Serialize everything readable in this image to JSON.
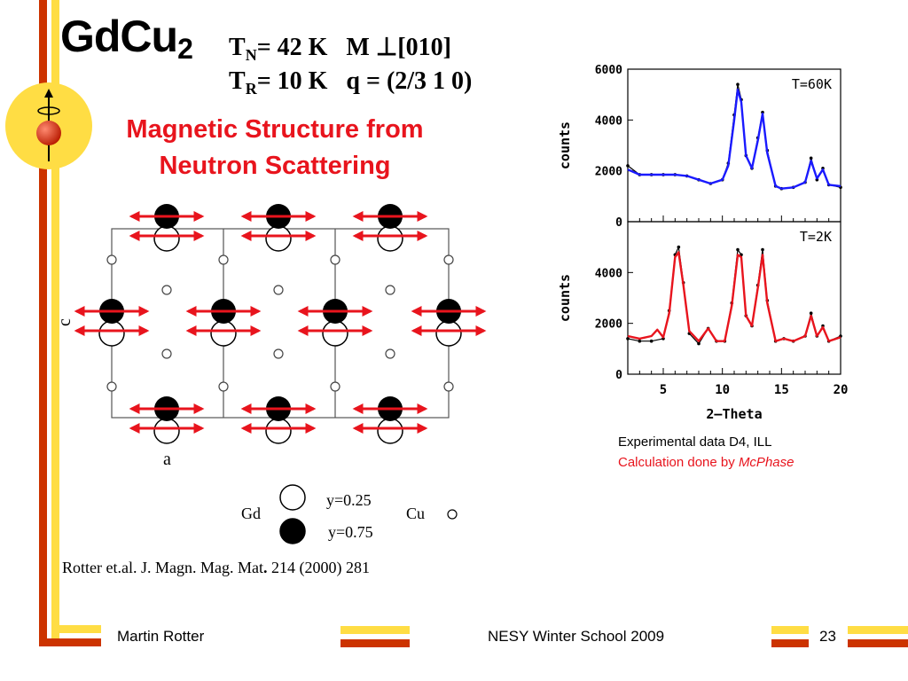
{
  "title": {
    "main": "GdCu",
    "subscript": "2"
  },
  "params": {
    "line1": {
      "t": "T",
      "sub": "N",
      "rest": "= 42 K   M ⊥[010]"
    },
    "line2": {
      "t": "T",
      "sub": "R",
      "rest": "= 10 K   q = (2/3 1 0)"
    }
  },
  "subtitle": {
    "line1": "Magnetic Structure from",
    "line2": "Neutron Scattering"
  },
  "structure": {
    "axis_c": "c",
    "axis_a": "a",
    "legend": {
      "gd": "Gd",
      "y025": "y=0.25",
      "y075": "y=0.75",
      "cu": "Cu"
    }
  },
  "chart_data": [
    {
      "type": "line",
      "annotation": "T=60K",
      "xlabel": "",
      "ylabel": "counts",
      "xlim": [
        2,
        20
      ],
      "ylim": [
        0,
        6000
      ],
      "yticks": [
        0,
        2000,
        4000,
        6000
      ],
      "series": [
        {
          "role": "experimental",
          "color": "#000000",
          "x": [
            2,
            3,
            4,
            5,
            6,
            7,
            8,
            9,
            10,
            10.5,
            11,
            11.3,
            11.6,
            12,
            12.5,
            13,
            13.4,
            13.8,
            14.5,
            15,
            16,
            17,
            17.5,
            18,
            18.5,
            19,
            20
          ],
          "y": [
            2200,
            1850,
            1850,
            1850,
            1850,
            1800,
            1650,
            1500,
            1650,
            2300,
            4200,
            5400,
            4800,
            2600,
            2100,
            3300,
            4300,
            2800,
            1400,
            1300,
            1350,
            1550,
            2500,
            1650,
            2100,
            1450,
            1350
          ]
        },
        {
          "role": "calculated",
          "color": "#1a1aff",
          "x": [
            2,
            3,
            4,
            5,
            6,
            7,
            8,
            9,
            10,
            10.5,
            11,
            11.3,
            11.6,
            12,
            12.5,
            13,
            13.4,
            13.8,
            14.5,
            15,
            16,
            17,
            17.5,
            18,
            18.5,
            19,
            20
          ],
          "y": [
            2050,
            1850,
            1850,
            1850,
            1850,
            1800,
            1650,
            1500,
            1650,
            2200,
            4000,
            5200,
            4700,
            2600,
            2100,
            3200,
            4250,
            2700,
            1400,
            1300,
            1350,
            1550,
            2400,
            1700,
            2050,
            1450,
            1400
          ]
        }
      ]
    },
    {
      "type": "line",
      "annotation": "T=2K",
      "xlabel": "2–Theta",
      "ylabel": "counts",
      "xlim": [
        2,
        20
      ],
      "ylim": [
        0,
        6000
      ],
      "yticks": [
        0,
        2000,
        4000
      ],
      "xticks": [
        5,
        10,
        15,
        20
      ],
      "series": [
        {
          "role": "experimental",
          "color": "#000000",
          "x": [
            2,
            3,
            4,
            5,
            5.5,
            6,
            6.3,
            6.7,
            7.2,
            8,
            8.8,
            9.5,
            10.2,
            10.8,
            11.3,
            11.6,
            12,
            12.5,
            13,
            13.4,
            13.8,
            14.5,
            15.2,
            16,
            17,
            17.5,
            18,
            18.5,
            19,
            20
          ],
          "y": [
            1400,
            1300,
            1300,
            1400,
            2500,
            4700,
            5000,
            3600,
            1600,
            1200,
            1800,
            1300,
            1300,
            2800,
            4900,
            4700,
            2300,
            1900,
            3500,
            4900,
            2900,
            1300,
            1400,
            1300,
            1500,
            2400,
            1500,
            1900,
            1300,
            1500
          ]
        },
        {
          "role": "calculated",
          "color": "#e8141d",
          "x": [
            2,
            3,
            4,
            4.5,
            5,
            5.5,
            6,
            6.3,
            6.7,
            7.2,
            8,
            8.8,
            9.5,
            10.2,
            10.8,
            11.3,
            11.6,
            12,
            12.5,
            13,
            13.4,
            13.8,
            14.5,
            15.2,
            16,
            17,
            17.5,
            18,
            18.5,
            19,
            20
          ],
          "y": [
            1500,
            1400,
            1500,
            1750,
            1450,
            2400,
            4600,
            4800,
            3500,
            1700,
            1300,
            1800,
            1300,
            1300,
            2700,
            4700,
            4600,
            2300,
            1900,
            3400,
            4700,
            2800,
            1300,
            1400,
            1300,
            1500,
            2300,
            1500,
            1850,
            1300,
            1450
          ]
        }
      ]
    }
  ],
  "captions": {
    "experimental": "Experimental data D4, ILL",
    "calc_prefix": "Calculation done by ",
    "calc_program": "McPhase"
  },
  "citation": {
    "pre": "Rotter et.al. J. Magn. Mag. Mat",
    "bold": ".",
    "post": " 214 (2000) 281"
  },
  "footer": {
    "author": "Martin Rotter",
    "event": "NESY Winter School 2009",
    "page": "23"
  },
  "colors": {
    "accent_orange": "#cc3300",
    "accent_yellow": "#ffdd44",
    "arrow_red": "#e8141d",
    "calc_blue": "#1a1aff"
  },
  "icons": {
    "logo": "spin-atom-logo-icon"
  }
}
